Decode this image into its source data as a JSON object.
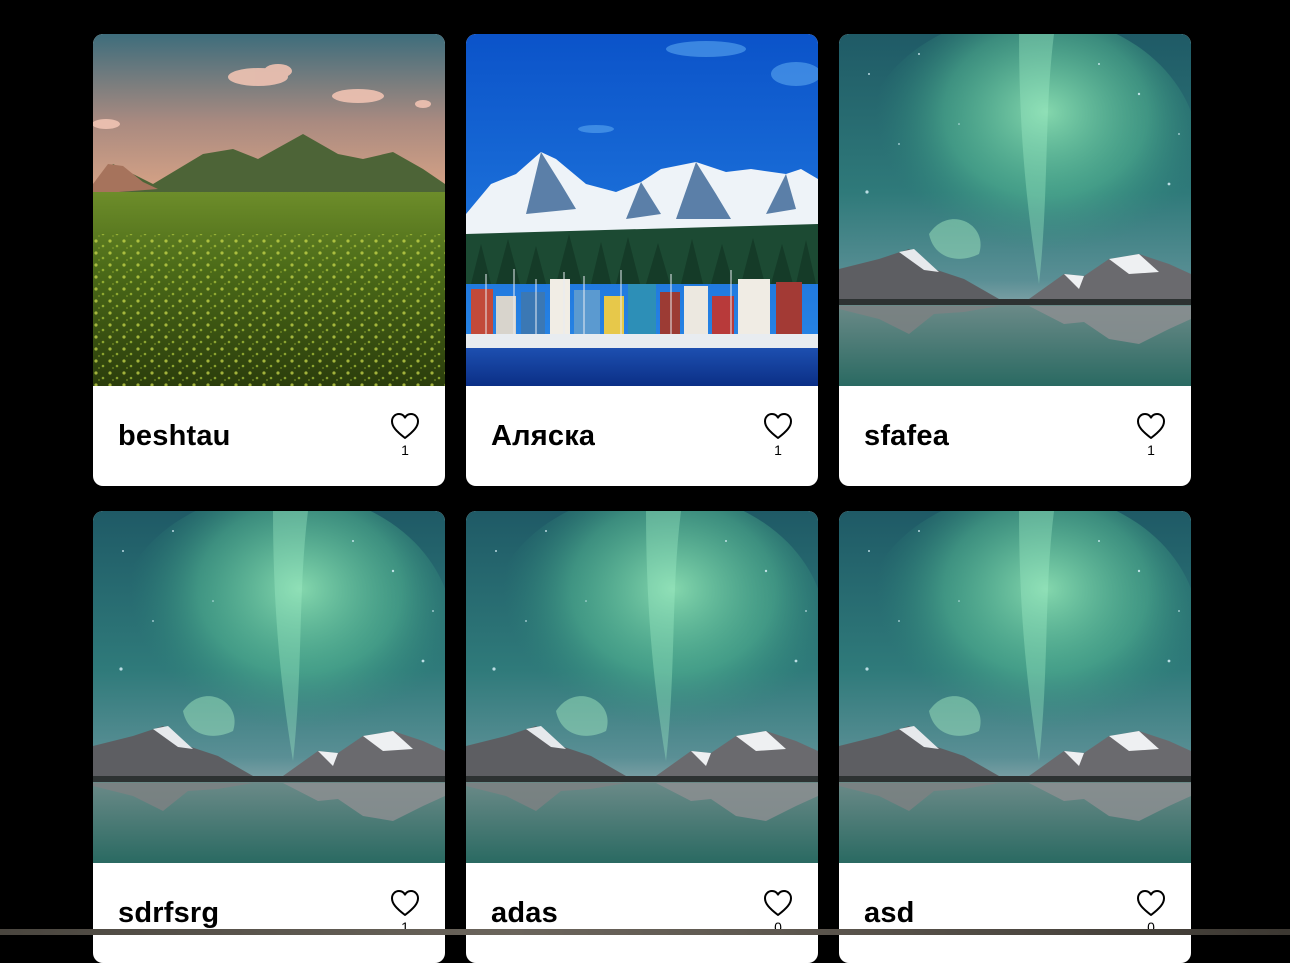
{
  "cards": [
    {
      "title": "beshtau",
      "likes": "1",
      "image": "field-mountains-photo",
      "liked": false
    },
    {
      "title": "Аляска",
      "likes": "1",
      "image": "alaska-harbor-photo",
      "liked": false
    },
    {
      "title": "sfafea",
      "likes": "1",
      "image": "aurora-photo",
      "liked": false
    },
    {
      "title": "sdrfsrg",
      "likes": "1",
      "image": "aurora-photo",
      "liked": false
    },
    {
      "title": "adas",
      "likes": "0",
      "image": "aurora-photo",
      "liked": false
    },
    {
      "title": "asd",
      "likes": "0",
      "image": "aurora-photo",
      "liked": false
    }
  ],
  "icons": {
    "like": "heart-outline-icon"
  },
  "colors": {
    "page_bg": "#000000",
    "card_bg": "#ffffff",
    "text": "#000000"
  }
}
